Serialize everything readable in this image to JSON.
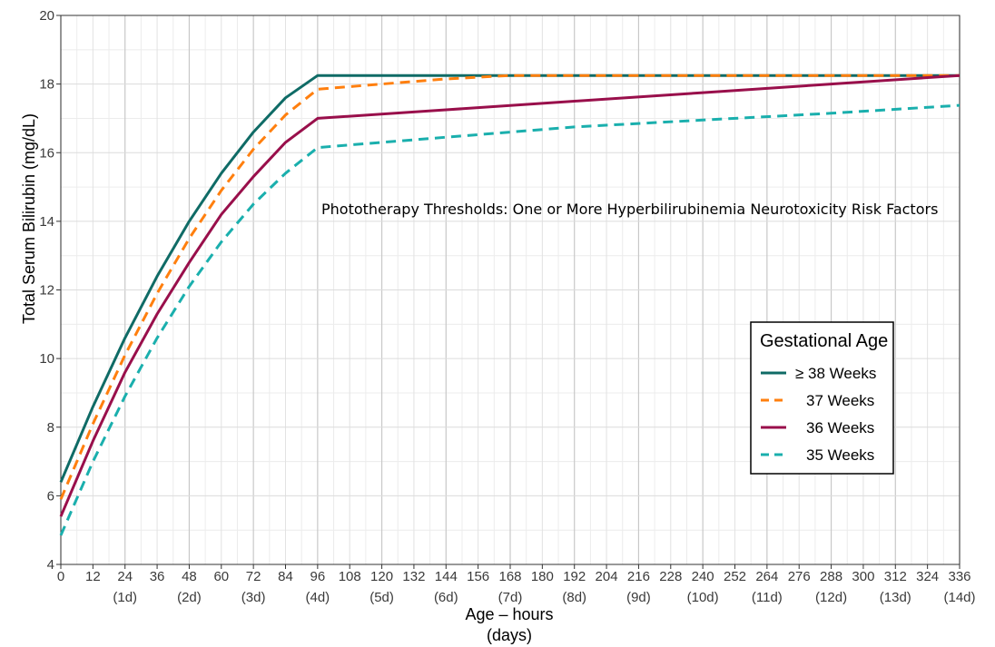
{
  "chart_data": {
    "type": "line",
    "annotation": "Phototherapy Thresholds:  One or More Hyperbilirubinemia Neurotoxicity Risk Factors",
    "xlabel": "Age – hours",
    "xlabel_sub": "(days)",
    "ylabel": "Total Serum Bilirubin (mg/dL)",
    "xlim": [
      0,
      336
    ],
    "ylim": [
      4,
      20
    ],
    "x_ticks": [
      0,
      12,
      24,
      36,
      48,
      60,
      72,
      84,
      96,
      108,
      120,
      132,
      144,
      156,
      168,
      180,
      192,
      204,
      216,
      228,
      240,
      252,
      264,
      276,
      288,
      300,
      312,
      324,
      336
    ],
    "day_ticks": [
      {
        "x": 24,
        "label": "(1d)"
      },
      {
        "x": 48,
        "label": "(2d)"
      },
      {
        "x": 72,
        "label": "(3d)"
      },
      {
        "x": 96,
        "label": "(4d)"
      },
      {
        "x": 120,
        "label": "(5d)"
      },
      {
        "x": 144,
        "label": "(6d)"
      },
      {
        "x": 168,
        "label": "(7d)"
      },
      {
        "x": 192,
        "label": "(8d)"
      },
      {
        "x": 216,
        "label": "(9d)"
      },
      {
        "x": 240,
        "label": "(10d)"
      },
      {
        "x": 264,
        "label": "(11d)"
      },
      {
        "x": 288,
        "label": "(12d)"
      },
      {
        "x": 312,
        "label": "(13d)"
      },
      {
        "x": 336,
        "label": "(14d)"
      }
    ],
    "y_ticks": [
      4,
      6,
      8,
      10,
      12,
      14,
      16,
      18,
      20
    ],
    "grid": true,
    "legend": {
      "title": "Gestational Age",
      "placement": "right"
    },
    "series": [
      {
        "name": "≥ 38 Weeks",
        "color": "#0f6b66",
        "dash": "solid",
        "points": [
          [
            0,
            6.4
          ],
          [
            12,
            8.6
          ],
          [
            24,
            10.6
          ],
          [
            36,
            12.4
          ],
          [
            48,
            14.0
          ],
          [
            60,
            15.4
          ],
          [
            72,
            16.6
          ],
          [
            84,
            17.6
          ],
          [
            96,
            18.25
          ],
          [
            120,
            18.25
          ],
          [
            168,
            18.25
          ],
          [
            240,
            18.25
          ],
          [
            336,
            18.25
          ]
        ]
      },
      {
        "name": "37 Weeks",
        "color": "#ff7f0e",
        "dash": "dashed",
        "points": [
          [
            0,
            5.9
          ],
          [
            12,
            8.1
          ],
          [
            24,
            10.1
          ],
          [
            36,
            11.9
          ],
          [
            48,
            13.5
          ],
          [
            60,
            14.9
          ],
          [
            72,
            16.1
          ],
          [
            84,
            17.1
          ],
          [
            96,
            17.85
          ],
          [
            120,
            18.0
          ],
          [
            144,
            18.15
          ],
          [
            168,
            18.25
          ],
          [
            336,
            18.25
          ]
        ]
      },
      {
        "name": "36 Weeks",
        "color": "#990f4b",
        "dash": "solid",
        "points": [
          [
            0,
            5.4
          ],
          [
            12,
            7.6
          ],
          [
            24,
            9.6
          ],
          [
            36,
            11.3
          ],
          [
            48,
            12.8
          ],
          [
            60,
            14.2
          ],
          [
            72,
            15.3
          ],
          [
            84,
            16.3
          ],
          [
            96,
            17.0
          ],
          [
            144,
            17.25
          ],
          [
            192,
            17.5
          ],
          [
            240,
            17.75
          ],
          [
            288,
            18.0
          ],
          [
            336,
            18.25
          ]
        ]
      },
      {
        "name": "35 Weeks",
        "color": "#1aafad",
        "dash": "dashed",
        "points": [
          [
            0,
            4.85
          ],
          [
            12,
            7.0
          ],
          [
            24,
            8.9
          ],
          [
            36,
            10.6
          ],
          [
            48,
            12.1
          ],
          [
            60,
            13.4
          ],
          [
            72,
            14.5
          ],
          [
            84,
            15.4
          ],
          [
            96,
            16.15
          ],
          [
            144,
            16.45
          ],
          [
            192,
            16.75
          ],
          [
            240,
            16.95
          ],
          [
            288,
            17.15
          ],
          [
            336,
            17.38
          ]
        ]
      }
    ]
  }
}
